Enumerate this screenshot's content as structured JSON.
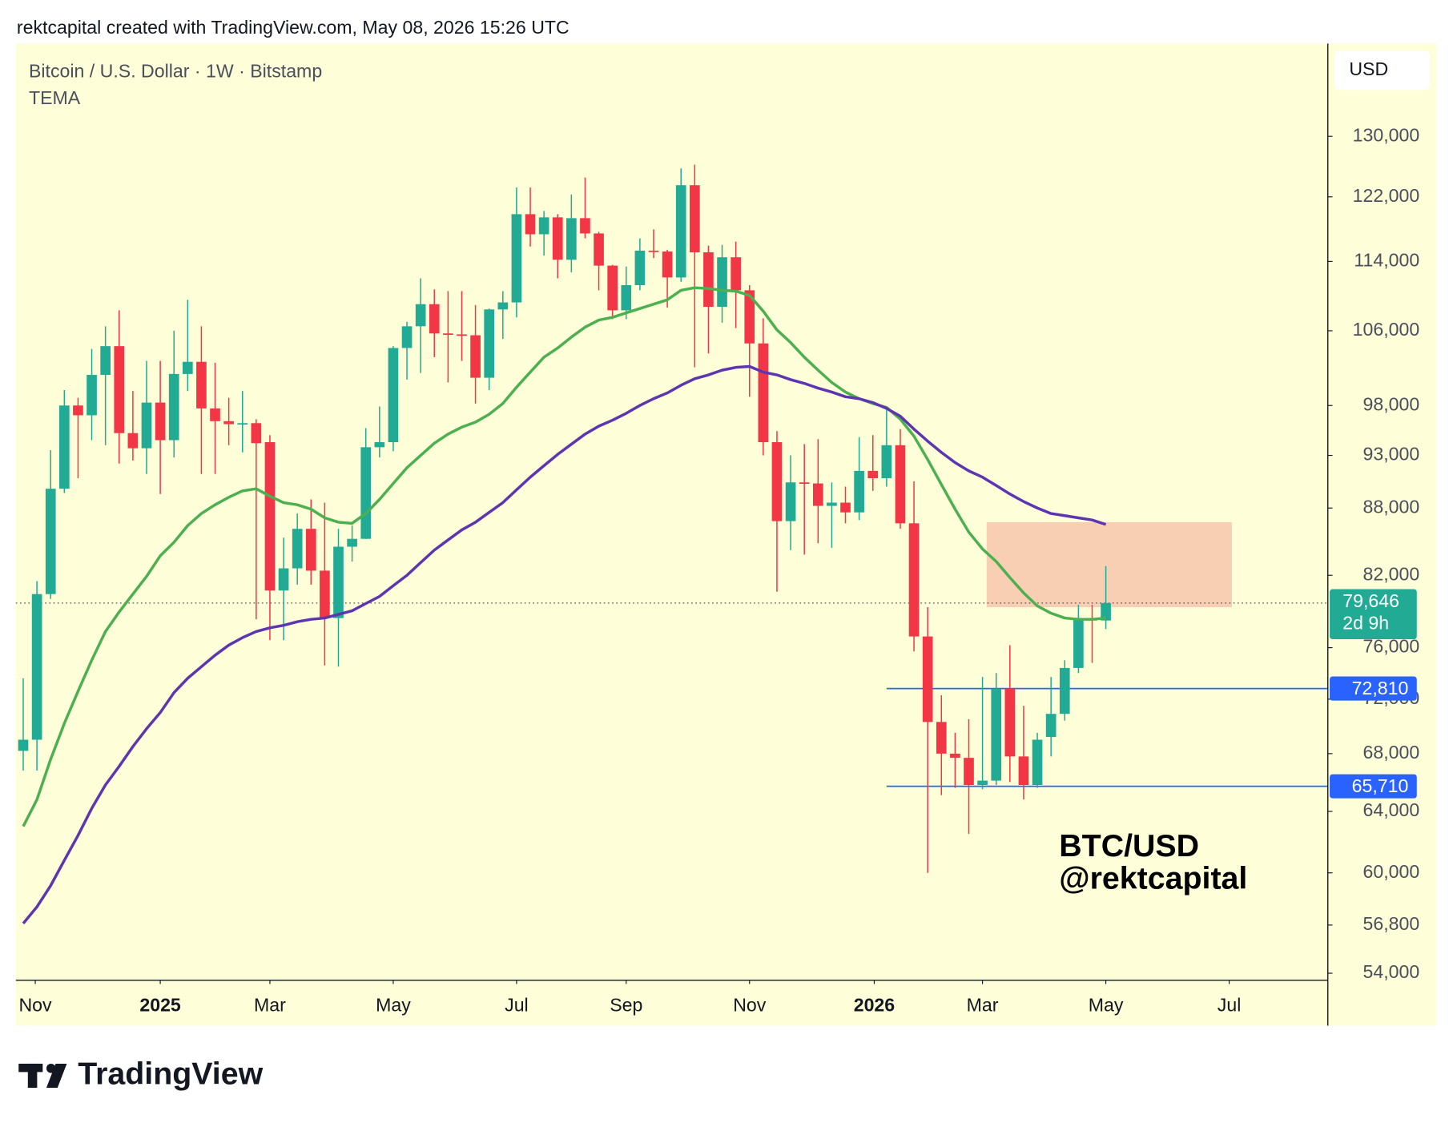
{
  "header": "rektcapital created with TradingView.com, May 08, 2026 15:26 UTC",
  "chart_data": {
    "type": "candlestick",
    "title": "Bitcoin / U.S. Dollar · 1W · Bitstamp",
    "indicator": "TEMA",
    "currency": "USD",
    "watermark": [
      "BTC/USD",
      "@rektcapital"
    ],
    "log_scale": true,
    "up_color": "#22ab94",
    "down_color": "#f23645",
    "ohlc": [
      [
        68200,
        73600,
        66800,
        69000
      ],
      [
        69000,
        81500,
        66800,
        80400
      ],
      [
        80400,
        93500,
        80000,
        89800
      ],
      [
        89800,
        99600,
        89400,
        98000
      ],
      [
        98000,
        98800,
        90800,
        97000
      ],
      [
        97000,
        104000,
        94500,
        101200
      ],
      [
        101200,
        106500,
        94000,
        104300
      ],
      [
        104300,
        108300,
        92200,
        95200
      ],
      [
        95200,
        99500,
        92500,
        93700
      ],
      [
        93700,
        102700,
        91200,
        98300
      ],
      [
        98300,
        102700,
        89300,
        94500
      ],
      [
        94500,
        106000,
        92800,
        101300
      ],
      [
        101300,
        109500,
        99500,
        102600
      ],
      [
        102600,
        106500,
        91200,
        97700
      ],
      [
        97700,
        102500,
        91200,
        96400
      ],
      [
        96400,
        98800,
        94000,
        96100
      ],
      [
        96100,
        99500,
        93300,
        96200
      ],
      [
        96200,
        96600,
        78300,
        94200
      ],
      [
        94300,
        95000,
        76600,
        80700
      ],
      [
        80700,
        85300,
        76600,
        82600
      ],
      [
        82600,
        87500,
        81200,
        86100
      ],
      [
        86100,
        88800,
        81200,
        82400
      ],
      [
        82400,
        88500,
        74600,
        78400
      ],
      [
        78400,
        86100,
        74500,
        84500
      ],
      [
        84500,
        86400,
        83200,
        85200
      ],
      [
        85200,
        95700,
        85200,
        93800
      ],
      [
        93800,
        97900,
        92800,
        94300
      ],
      [
        94300,
        104300,
        93400,
        104100
      ],
      [
        104100,
        107000,
        100700,
        106500
      ],
      [
        106500,
        112000,
        101400,
        109000
      ],
      [
        109000,
        110700,
        103100,
        105700
      ],
      [
        105700,
        110500,
        100400,
        105600
      ],
      [
        105600,
        110500,
        102700,
        105500
      ],
      [
        105500,
        108900,
        98200,
        100900
      ],
      [
        100900,
        108500,
        99600,
        108400
      ],
      [
        108400,
        110500,
        105100,
        109200
      ],
      [
        109200,
        123200,
        107500,
        119800
      ],
      [
        119800,
        123200,
        115800,
        117300
      ],
      [
        117300,
        120200,
        114700,
        119400
      ],
      [
        119400,
        119800,
        112000,
        114200
      ],
      [
        114200,
        122300,
        112700,
        119300
      ],
      [
        119300,
        124500,
        116800,
        117400
      ],
      [
        117400,
        117600,
        110600,
        113500
      ],
      [
        113500,
        113600,
        107300,
        108300
      ],
      [
        108300,
        113400,
        107300,
        111200
      ],
      [
        111200,
        116800,
        110600,
        115300
      ],
      [
        115300,
        117900,
        114400,
        115200
      ],
      [
        115200,
        115400,
        108600,
        112100
      ],
      [
        112100,
        125700,
        111600,
        123500
      ],
      [
        123500,
        126200,
        102000,
        115100
      ],
      [
        115100,
        115900,
        103500,
        108700
      ],
      [
        108700,
        116000,
        106900,
        114500
      ],
      [
        114500,
        116400,
        106300,
        110600
      ],
      [
        110600,
        111200,
        98900,
        104600
      ],
      [
        104600,
        107400,
        93000,
        94300
      ],
      [
        94300,
        95400,
        80600,
        86800
      ],
      [
        86800,
        93000,
        84200,
        90400
      ],
      [
        90400,
        94100,
        83800,
        90300
      ],
      [
        90300,
        94600,
        84800,
        88200
      ],
      [
        88200,
        90400,
        84400,
        88500
      ],
      [
        88500,
        90000,
        86600,
        87600
      ],
      [
        87600,
        94800,
        86900,
        91500
      ],
      [
        91500,
        95000,
        89600,
        90800
      ],
      [
        90800,
        97900,
        90000,
        94000
      ],
      [
        94000,
        95600,
        86100,
        86600
      ],
      [
        86600,
        90500,
        75700,
        76900
      ],
      [
        76900,
        79300,
        60000,
        70300
      ],
      [
        70300,
        72300,
        65100,
        68000
      ],
      [
        68000,
        69500,
        65600,
        67700
      ],
      [
        67700,
        70500,
        62500,
        65800
      ],
      [
        65800,
        73700,
        65500,
        66100
      ],
      [
        66100,
        74000,
        65800,
        72800
      ],
      [
        72800,
        76200,
        66000,
        67800
      ],
      [
        67800,
        71500,
        64800,
        65800
      ],
      [
        65800,
        69500,
        65600,
        69000
      ],
      [
        69200,
        73700,
        67800,
        70900
      ],
      [
        70900,
        75000,
        70400,
        74400
      ],
      [
        74400,
        79500,
        74000,
        78300
      ],
      [
        78400,
        79500,
        74800,
        78200
      ],
      [
        78200,
        82800,
        77500,
        79646
      ]
    ],
    "indicator_lines": [
      {
        "color": "#4caf50",
        "values": [
          63000,
          64800,
          67600,
          70200,
          72600,
          75000,
          77300,
          78900,
          80400,
          81900,
          83700,
          84900,
          86400,
          87500,
          88300,
          89000,
          89600,
          89800,
          89100,
          88500,
          88300,
          87900,
          87100,
          86700,
          86600,
          87500,
          88800,
          90300,
          91800,
          93000,
          94200,
          95100,
          95800,
          96300,
          97100,
          98200,
          99900,
          101500,
          103100,
          104100,
          105300,
          106400,
          107200,
          107500,
          108000,
          108500,
          109000,
          109500,
          110600,
          110900,
          110800,
          110600,
          110500,
          110000,
          108200,
          106100,
          104700,
          103100,
          101700,
          100400,
          99400,
          98700,
          98200,
          97800,
          96600,
          94900,
          92600,
          90200,
          87900,
          85800,
          84300,
          83200,
          81800,
          80500,
          79400,
          78800,
          78400,
          78300,
          78300,
          78400
        ]
      },
      {
        "color": "#5e35b1",
        "values": [
          56900,
          57900,
          59200,
          60800,
          62400,
          64200,
          65800,
          67100,
          68500,
          69800,
          71000,
          72500,
          73600,
          74500,
          75400,
          76200,
          76800,
          77300,
          77600,
          77800,
          78100,
          78300,
          78400,
          78700,
          79000,
          79600,
          80200,
          81100,
          82000,
          83100,
          84200,
          85100,
          86000,
          86700,
          87600,
          88500,
          89700,
          90900,
          92000,
          93100,
          94100,
          95100,
          95900,
          96500,
          97200,
          98000,
          98700,
          99300,
          100100,
          100800,
          101200,
          101700,
          102000,
          102100,
          101500,
          101200,
          100700,
          100300,
          99800,
          99400,
          98900,
          98700,
          98300,
          97700,
          96900,
          95600,
          94400,
          93300,
          92300,
          91500,
          90900,
          90100,
          89300,
          88600,
          88000,
          87500,
          87300,
          87100,
          86900,
          86500
        ]
      }
    ],
    "zone": {
      "low": 79300,
      "high": 86700,
      "start": 70.3,
      "end": 88.2,
      "color": "#f9cfb3"
    },
    "levels": [
      {
        "value": 72810,
        "label": "72,810",
        "start": 63
      },
      {
        "value": 65710,
        "label": "65,710",
        "start": 63
      }
    ],
    "level_color": "#2962ff",
    "last_price": {
      "value": 79646,
      "label": "79,646",
      "countdown": "2d 9h"
    },
    "xlim": [
      -0.54,
      95.2
    ],
    "xticks": [
      {
        "value": 0.88,
        "label": "Nov"
      },
      {
        "value": 10,
        "label": "2025"
      },
      {
        "value": 18,
        "label": "Mar"
      },
      {
        "value": 27,
        "label": "May"
      },
      {
        "value": 36,
        "label": "Jul"
      },
      {
        "value": 44,
        "label": "Sep"
      },
      {
        "value": 53,
        "label": "Nov"
      },
      {
        "value": 62.1,
        "label": "2026"
      },
      {
        "value": 70,
        "label": "Mar"
      },
      {
        "value": 79,
        "label": "May"
      },
      {
        "value": 88,
        "label": "Jul"
      }
    ],
    "ylim": [
      53600,
      143300
    ],
    "yticks": [
      {
        "value": 130000,
        "label": "130,000"
      },
      {
        "value": 122000,
        "label": "122,000"
      },
      {
        "value": 114000,
        "label": "114,000"
      },
      {
        "value": 106000,
        "label": "106,000"
      },
      {
        "value": 98000,
        "label": "98,000"
      },
      {
        "value": 93000,
        "label": "93,000"
      },
      {
        "value": 88000,
        "label": "88,000"
      },
      {
        "value": 82000,
        "label": "82,000"
      },
      {
        "value": 76000,
        "label": "76,000"
      },
      {
        "value": 72000,
        "label": "72,000"
      },
      {
        "value": 68000,
        "label": "68,000"
      },
      {
        "value": 64000,
        "label": "64,000"
      },
      {
        "value": 60000,
        "label": "60,000"
      },
      {
        "value": 56800,
        "label": "56,800"
      },
      {
        "value": 54000,
        "label": "54,000"
      }
    ]
  },
  "footer": {
    "logo": "TradingView"
  }
}
